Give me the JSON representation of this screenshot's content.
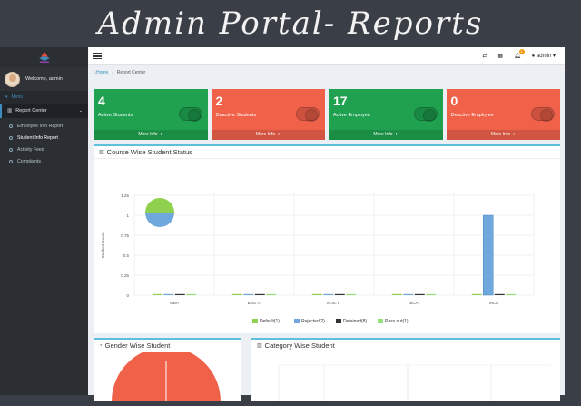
{
  "page_heading": "Admin Portal- Reports",
  "sidebar": {
    "user_name": "Welcome, admin",
    "menu_label": "Menu",
    "section": "Report Center",
    "items": [
      {
        "label": "Employee Info Report"
      },
      {
        "label": "Student Info Report"
      },
      {
        "label": "Activity Feed"
      },
      {
        "label": "Complaints"
      }
    ]
  },
  "topbar": {
    "notification_count": "1",
    "user_label": "admin"
  },
  "breadcrumb": {
    "home": "Home",
    "current": "Report Center"
  },
  "cards": [
    {
      "count": "4",
      "label": "Active Students",
      "more": "More Info",
      "color": "#1fa14f"
    },
    {
      "count": "2",
      "label": "Deactive Students",
      "more": "More Info",
      "color": "#f0614a"
    },
    {
      "count": "17",
      "label": "Active Employee",
      "more": "More Info",
      "color": "#1fa14f"
    },
    {
      "count": "0",
      "label": "Deactive Employee",
      "more": "More Info",
      "color": "#f0614a"
    }
  ],
  "course_chart": {
    "title": "Course Wise Student Status",
    "chart_data": {
      "type": "bar",
      "ylabel": "Student Count",
      "ylim": [
        0,
        1.25
      ],
      "yticks": [
        "0",
        "0.25",
        "0.5",
        "0.75",
        "1",
        "1.25"
      ],
      "categories": [
        "MBA",
        "B.Sc IT",
        "M.Sc IT",
        "BCA",
        "MCA"
      ],
      "series": [
        {
          "name": "Default(1)",
          "color": "#8fd14f",
          "values": [
            0,
            0,
            0,
            0,
            0
          ]
        },
        {
          "name": "Rejected(2)",
          "color": "#6fa8dc",
          "values": [
            0,
            0,
            0,
            0,
            1
          ]
        },
        {
          "name": "Detained(8)",
          "color": "#333333",
          "values": [
            0,
            0,
            0,
            0,
            0
          ]
        },
        {
          "name": "Pass out(1)",
          "color": "#93e27a",
          "values": [
            0,
            0,
            0,
            0,
            0
          ]
        }
      ],
      "legend": "bottom"
    }
  },
  "gender_title": "Gender Wise Student",
  "category_title": "Category Wise Student"
}
